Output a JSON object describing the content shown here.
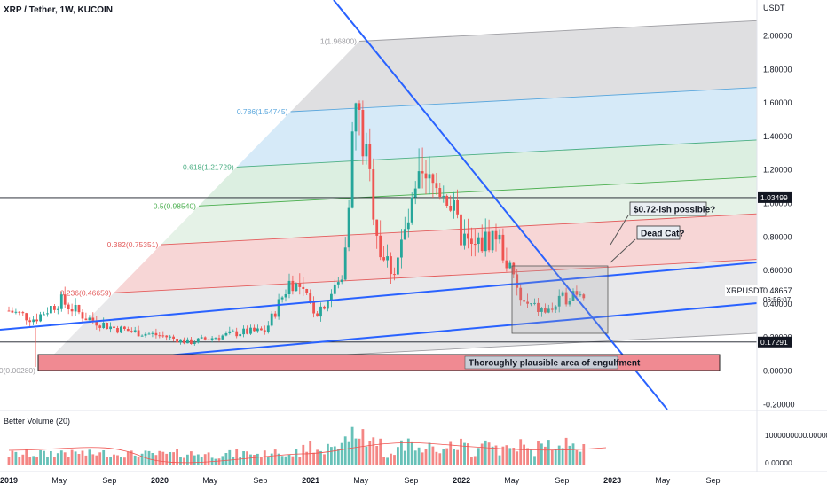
{
  "header": {
    "title": "XRP / Tether, 1W, KUCOIN"
  },
  "price_axis": {
    "unit": "USDT",
    "ticks": [
      {
        "value": 2.0,
        "label": "2.00000"
      },
      {
        "value": 1.8,
        "label": "1.80000"
      },
      {
        "value": 1.6,
        "label": "1.60000"
      },
      {
        "value": 1.4,
        "label": "1.40000"
      },
      {
        "value": 1.2,
        "label": "1.20000"
      },
      {
        "value": 1.0,
        "label": "1.00000"
      },
      {
        "value": 0.8,
        "label": "0.80000"
      },
      {
        "value": 0.6,
        "label": "0.60000"
      },
      {
        "value": 0.4,
        "label": "0.40000"
      },
      {
        "value": 0.2,
        "label": "0.20000"
      },
      {
        "value": 0.0,
        "label": "0.00000"
      },
      {
        "value": -0.2,
        "label": "-0.20000"
      }
    ],
    "badges": [
      {
        "value": 1.03499,
        "label": "1.03499"
      },
      {
        "value": 0.17291,
        "label": "0.17291"
      }
    ],
    "symbol": "XRPUSDT",
    "last_price": "0.48657",
    "countdown": "06:56:07"
  },
  "time_axis": {
    "labels": [
      "2019",
      "May",
      "Sep",
      "2020",
      "May",
      "Sep",
      "2021",
      "May",
      "Sep",
      "2022",
      "May",
      "Sep",
      "2023",
      "May",
      "Sep"
    ],
    "bold": [
      "2019",
      "2020",
      "2021",
      "2022",
      "2023"
    ]
  },
  "fib_levels": [
    {
      "ratio": 1.0,
      "label": "1(1.96800)",
      "price": 1.968,
      "fill": "#d9d9dc",
      "line": "#9e9ea3"
    },
    {
      "ratio": 0.786,
      "label": "0.786(1.54745)",
      "price": 1.54745,
      "fill": "#cfe6f7",
      "line": "#5aa7dd"
    },
    {
      "ratio": 0.618,
      "label": "0.618(1.21729)",
      "price": 1.21729,
      "fill": "#d6ecdc",
      "line": "#4caf84"
    },
    {
      "ratio": 0.5,
      "label": "0.5(0.98540)",
      "price": 0.9854,
      "fill": "#e0f0e3",
      "line": "#4caf50"
    },
    {
      "ratio": 0.382,
      "label": "0.382(0.75351)",
      "price": 0.75351,
      "fill": "#f6cfcf",
      "line": "#e35b5b"
    },
    {
      "ratio": 0.236,
      "label": "0.236(0.46659)",
      "price": 0.46659,
      "fill": "#e4e4e6",
      "line": "#e35b5b"
    },
    {
      "ratio": 0.0,
      "label": "0(0.00280)",
      "price": 0.0028,
      "fill": "none",
      "line": "#9e9ea3"
    }
  ],
  "annotations": {
    "callout_1": "$0.72-ish possible?",
    "callout_2": "Dead Cat?",
    "zone_label": "Thoroughly plausible area of engulfment"
  },
  "volume_pane": {
    "title": "Better Volume (20)",
    "ticks": [
      "1000000000.00000",
      "0.00000"
    ]
  },
  "colors": {
    "up": "#26a69a",
    "down": "#ef5350",
    "trend": "#2962ff",
    "zone": "#f08a92"
  },
  "chart_data": {
    "type": "candlestick",
    "title": "XRP / Tether, 1W, KUCOIN",
    "ylabel": "USDT",
    "ylim": [
      -0.2,
      2.2
    ],
    "series": [
      {
        "name": "XRPUSDT",
        "points": [
          {
            "t": "2019-01",
            "close": 0.36
          },
          {
            "t": "2019-03",
            "close": 0.31
          },
          {
            "t": "2019-05",
            "close": 0.42
          },
          {
            "t": "2019-07",
            "close": 0.32
          },
          {
            "t": "2019-09",
            "close": 0.26
          },
          {
            "t": "2019-11",
            "close": 0.23
          },
          {
            "t": "2020-01",
            "close": 0.21
          },
          {
            "t": "2020-03",
            "close": 0.17
          },
          {
            "t": "2020-05",
            "close": 0.2
          },
          {
            "t": "2020-07",
            "close": 0.23
          },
          {
            "t": "2020-09",
            "close": 0.24
          },
          {
            "t": "2020-11",
            "close": 0.55
          },
          {
            "t": "2021-01",
            "close": 0.35
          },
          {
            "t": "2021-03",
            "close": 0.55
          },
          {
            "t": "2021-04",
            "close": 1.6
          },
          {
            "t": "2021-05",
            "close": 1.2
          },
          {
            "t": "2021-06",
            "close": 0.7
          },
          {
            "t": "2021-07",
            "close": 0.6
          },
          {
            "t": "2021-09",
            "close": 1.1
          },
          {
            "t": "2021-11",
            "close": 1.1
          },
          {
            "t": "2021-12",
            "close": 0.85
          },
          {
            "t": "2022-01",
            "close": 0.72
          },
          {
            "t": "2022-03",
            "close": 0.82
          },
          {
            "t": "2022-05",
            "close": 0.4
          },
          {
            "t": "2022-07",
            "close": 0.35
          },
          {
            "t": "2022-09",
            "close": 0.48
          },
          {
            "t": "2022-10",
            "close": 0.48657
          }
        ]
      }
    ]
  }
}
